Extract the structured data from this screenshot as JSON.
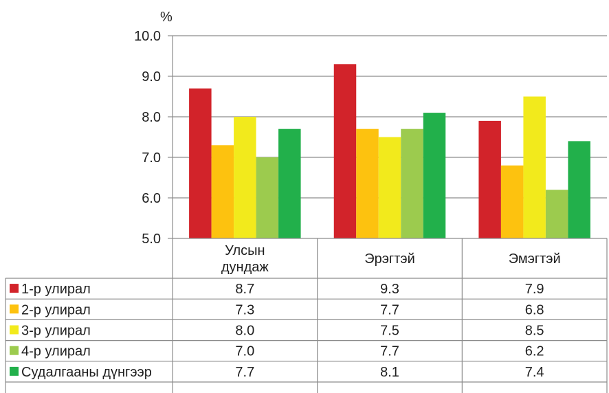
{
  "chart_data": {
    "type": "bar",
    "ylabel": "%",
    "ylim": [
      5.0,
      10.0
    ],
    "yticks": [
      "10.0",
      "9.0",
      "8.0",
      "7.0",
      "6.0",
      "5.0"
    ],
    "categories": [
      [
        "Улсын",
        "дундаж"
      ],
      [
        "Эрэгтэй"
      ],
      [
        "Эмэгтэй"
      ]
    ],
    "grid": true,
    "legend": "table-below",
    "series": [
      {
        "name": "1-р улирал",
        "values": [
          8.7,
          9.3,
          7.9
        ],
        "labels": [
          "8.7",
          "9.3",
          "7.9"
        ],
        "color": "#d2232a"
      },
      {
        "name": "2-р улирал",
        "values": [
          7.3,
          7.7,
          6.8
        ],
        "labels": [
          "7.3",
          "7.7",
          "6.8"
        ],
        "color": "#fdc20f"
      },
      {
        "name": "3-р улирал",
        "values": [
          8.0,
          7.5,
          8.5
        ],
        "labels": [
          "8.0",
          "7.5",
          "8.5"
        ],
        "color": "#f2ea1c"
      },
      {
        "name": "4-р улирал",
        "values": [
          7.0,
          7.7,
          6.2
        ],
        "labels": [
          "7.0",
          "7.7",
          "6.2"
        ],
        "color": "#9ccb4e"
      },
      {
        "name": "Судалгааны дүнгээр",
        "values": [
          7.7,
          8.1,
          7.4
        ],
        "labels": [
          "7.7",
          "8.1",
          "7.4"
        ],
        "color": "#22b04b"
      }
    ]
  }
}
